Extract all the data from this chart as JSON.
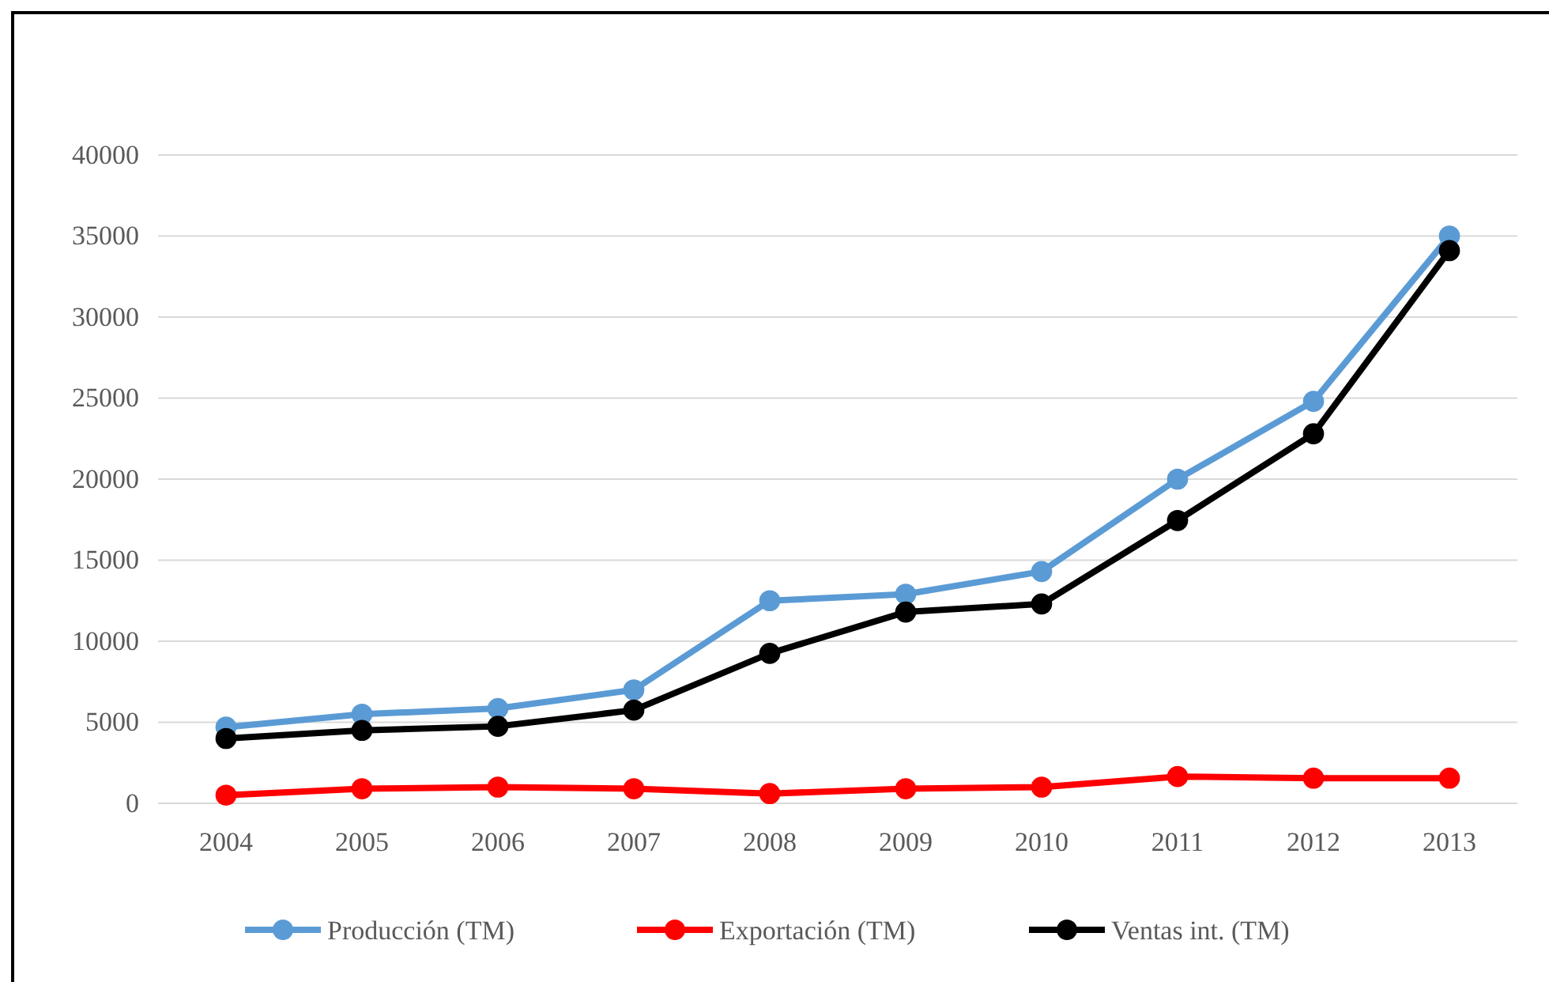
{
  "chart_data": {
    "type": "line",
    "categories": [
      "2004",
      "2005",
      "2006",
      "2007",
      "2008",
      "2009",
      "2010",
      "2011",
      "2012",
      "2013"
    ],
    "series": [
      {
        "name": "Producción (TM)",
        "color": "#5b9bd5",
        "values": [
          4700,
          5500,
          5850,
          7000,
          12500,
          12900,
          14300,
          20000,
          24800,
          35000
        ]
      },
      {
        "name": "Exportación (TM)",
        "color": "#ff0000",
        "values": [
          500,
          900,
          1000,
          900,
          600,
          900,
          1000,
          1650,
          1550,
          1550
        ]
      },
      {
        "name": "Ventas int. (TM)",
        "color": "#000000",
        "values": [
          4000,
          4500,
          4750,
          5750,
          9250,
          11800,
          12300,
          17450,
          22800,
          34100
        ]
      }
    ],
    "ylim": [
      0,
      40000
    ],
    "yticks": [
      0,
      5000,
      10000,
      15000,
      20000,
      25000,
      30000,
      35000,
      40000
    ],
    "grid": "y",
    "legend": "bottom",
    "marker": "circle",
    "line_style": "solid"
  }
}
